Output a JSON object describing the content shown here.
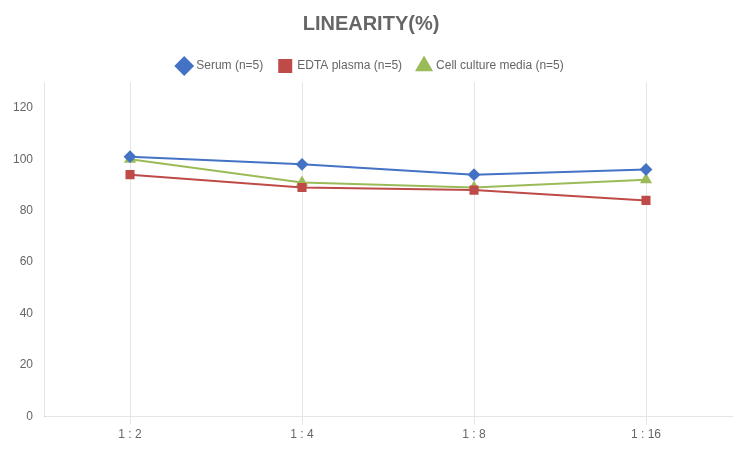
{
  "chart_data": {
    "type": "line",
    "title": "LINEARITY(%)",
    "categories": [
      "1 : 2",
      "1 : 4",
      "1 : 8",
      "1 : 16"
    ],
    "series": [
      {
        "name": "Serum (n=5)",
        "color": "#4472C4",
        "marker": "diamond",
        "values": [
          101,
          98,
          94,
          96
        ]
      },
      {
        "name": "EDTA plasma (n=5)",
        "color": "#BE4B48",
        "marker": "square",
        "values": [
          94,
          89,
          88,
          84
        ]
      },
      {
        "name": "Cell culture media (n=5)",
        "color": "#9BBB59",
        "marker": "triangle",
        "values": [
          100,
          91,
          89,
          92
        ]
      }
    ],
    "ylim": [
      0,
      130
    ],
    "yticks": [
      0,
      20,
      40,
      60,
      80,
      100,
      120
    ],
    "grid": "x",
    "legend": "top"
  }
}
